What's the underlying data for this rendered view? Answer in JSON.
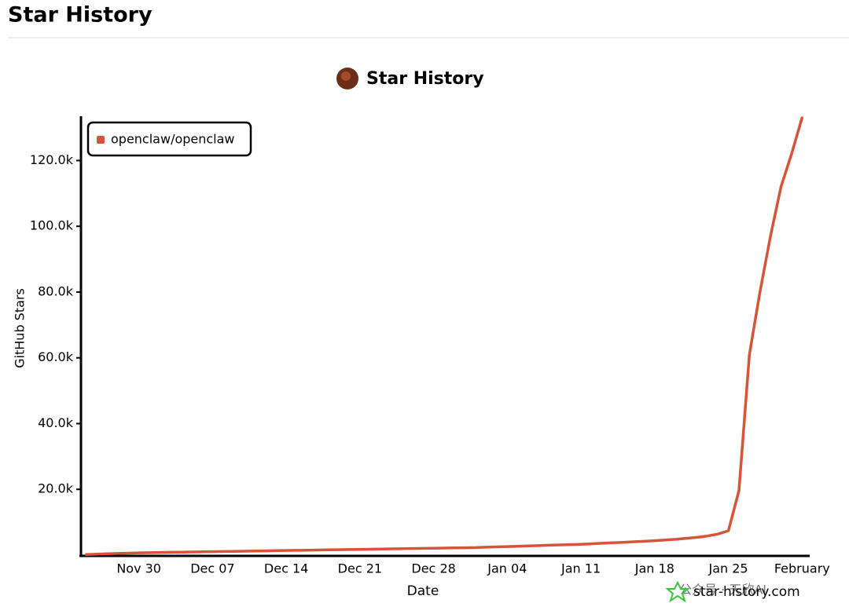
{
  "header": {
    "title": "Star History"
  },
  "chart_data": {
    "type": "line",
    "title": "Star History",
    "xlabel": "Date",
    "ylabel": "GitHub Stars",
    "categories": [
      null,
      null,
      null,
      null,
      null,
      "Nov 30",
      null,
      null,
      null,
      null,
      null,
      null,
      "Dec 07",
      null,
      null,
      null,
      null,
      null,
      null,
      "Dec 14",
      null,
      null,
      null,
      null,
      null,
      null,
      "Dec 21",
      null,
      null,
      null,
      null,
      null,
      null,
      "Dec 28",
      null,
      null,
      null,
      null,
      null,
      null,
      "Jan 04",
      null,
      null,
      null,
      null,
      null,
      null,
      "Jan 11",
      null,
      null,
      null,
      null,
      null,
      null,
      "Jan 18",
      null,
      null,
      null,
      null,
      null,
      null,
      "Jan 25",
      null,
      null,
      null,
      null,
      null,
      null,
      "February"
    ],
    "series": [
      {
        "name": "openclaw/openclaw",
        "color": "#d4553a",
        "values": [
          200,
          300,
          400,
          500,
          600,
          700,
          750,
          800,
          850,
          900,
          950,
          1000,
          1050,
          1100,
          1150,
          1200,
          1250,
          1300,
          1350,
          1400,
          1450,
          1500,
          1550,
          1600,
          1650,
          1700,
          1750,
          1800,
          1850,
          1900,
          1950,
          2000,
          2050,
          2100,
          2150,
          2200,
          2250,
          2300,
          2400,
          2500,
          2600,
          2700,
          2800,
          2900,
          3000,
          3100,
          3200,
          3300,
          3450,
          3600,
          3750,
          3900,
          4050,
          4200,
          4400,
          4600,
          4800,
          5100,
          5400,
          5800,
          6400,
          7400,
          19600,
          61000,
          80000,
          97000,
          112000,
          122000,
          133000
        ]
      }
    ],
    "ylim": [
      0,
      133000
    ],
    "yticks": [
      {
        "value": 20000,
        "label": "20.0k"
      },
      {
        "value": 40000,
        "label": "40.0k"
      },
      {
        "value": 60000,
        "label": "60.0k"
      },
      {
        "value": 80000,
        "label": "80.0k"
      },
      {
        "value": 100000,
        "label": "100.0k"
      },
      {
        "value": 120000,
        "label": "120.0k"
      }
    ],
    "legend": "upper left",
    "grid": false,
    "watermark": "star-history.com"
  },
  "overlay": {
    "text": "公众号 · 天欣AI"
  }
}
